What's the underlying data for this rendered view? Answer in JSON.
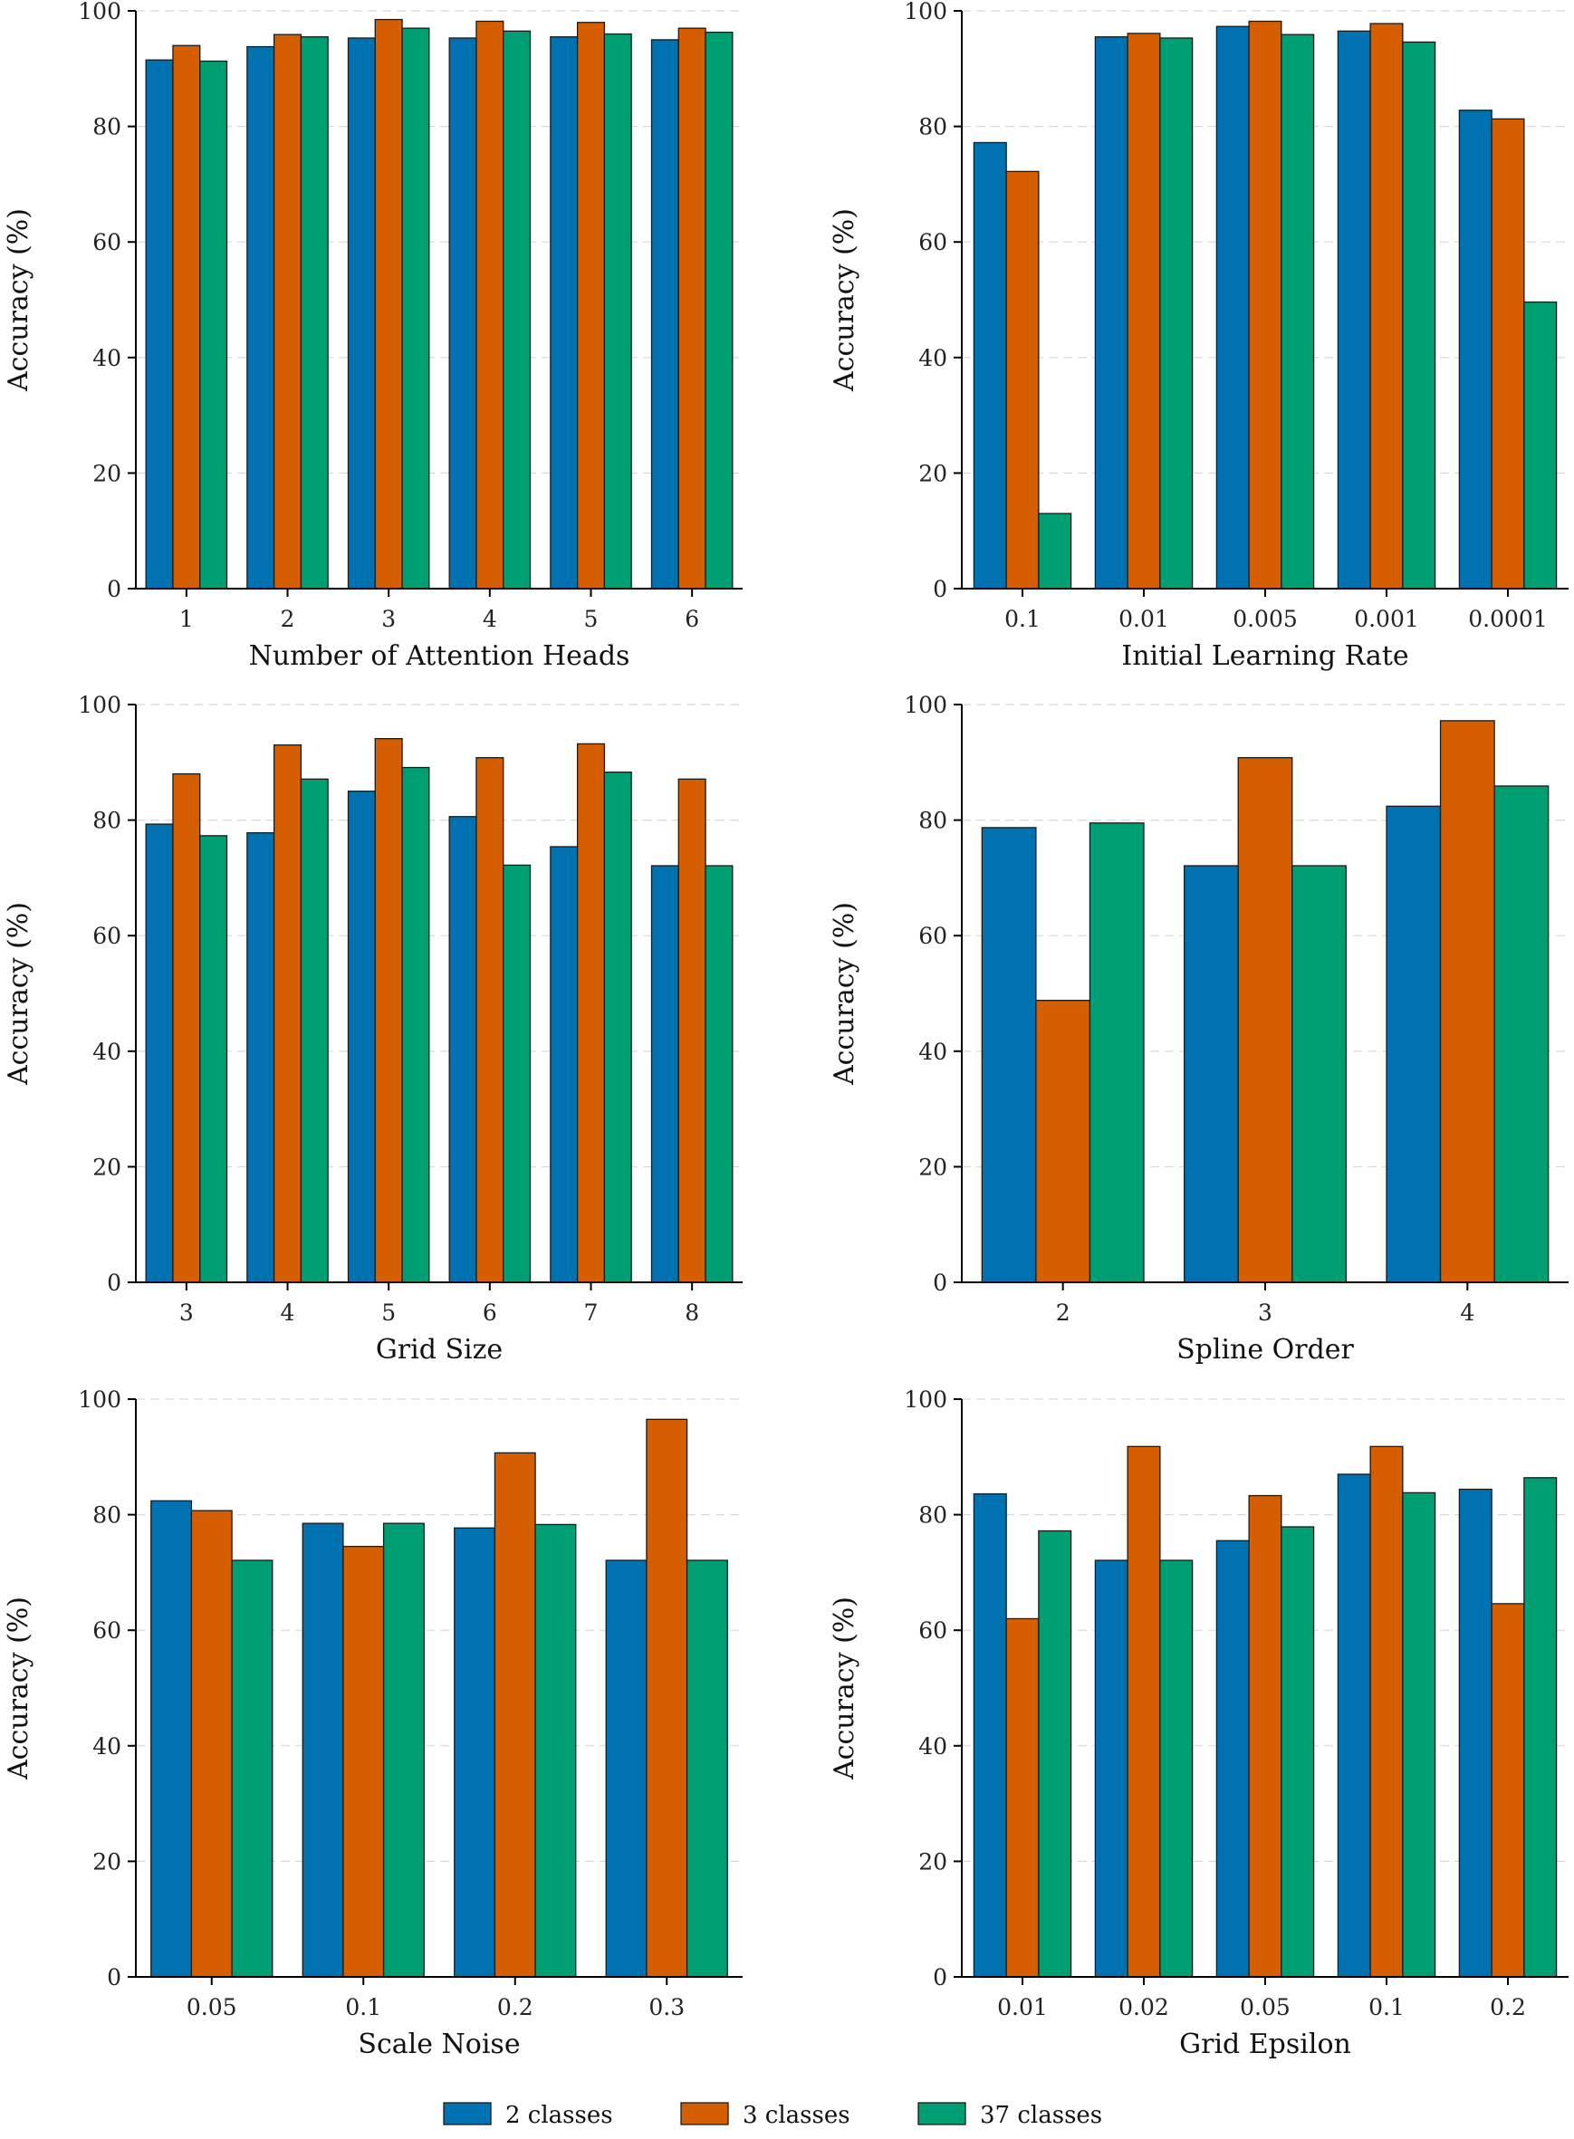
{
  "chart_data": [
    {
      "type": "bar",
      "xlabel": "Number of Attention Heads",
      "ylabel": "Accuracy (%)",
      "ylim": [
        0,
        100
      ],
      "yticks": [
        "0",
        "20",
        "40",
        "60",
        "80",
        "100"
      ],
      "grid": true,
      "categories": [
        "1",
        "2",
        "3",
        "4",
        "5",
        "6"
      ],
      "series": [
        {
          "name": "2 classes",
          "values": [
            91.5,
            93.8,
            95.3,
            95.3,
            95.5,
            95.0
          ]
        },
        {
          "name": "3 classes",
          "values": [
            94.0,
            95.9,
            98.5,
            98.2,
            98.0,
            97.0
          ]
        },
        {
          "name": "37 classes",
          "values": [
            91.3,
            95.5,
            97.0,
            96.5,
            96.0,
            96.3
          ]
        }
      ]
    },
    {
      "type": "bar",
      "xlabel": "Initial Learning Rate",
      "ylabel": "Accuracy (%)",
      "ylim": [
        0,
        100
      ],
      "yticks": [
        "0",
        "20",
        "40",
        "60",
        "80",
        "100"
      ],
      "grid": true,
      "categories": [
        "0.1",
        "0.01",
        "0.005",
        "0.001",
        "0.0001"
      ],
      "series": [
        {
          "name": "2 classes",
          "values": [
            77.2,
            95.5,
            97.3,
            96.5,
            82.8
          ]
        },
        {
          "name": "3 classes",
          "values": [
            72.2,
            96.1,
            98.2,
            97.8,
            81.3
          ]
        },
        {
          "name": "37 classes",
          "values": [
            13.0,
            95.3,
            95.9,
            94.6,
            49.6
          ]
        }
      ]
    },
    {
      "type": "bar",
      "xlabel": "Grid Size",
      "ylabel": "Accuracy (%)",
      "ylim": [
        0,
        100
      ],
      "yticks": [
        "0",
        "20",
        "40",
        "60",
        "80",
        "100"
      ],
      "grid": true,
      "categories": [
        "3",
        "4",
        "5",
        "6",
        "7",
        "8"
      ],
      "series": [
        {
          "name": "2 classes",
          "values": [
            79.3,
            77.8,
            85.0,
            80.6,
            75.4,
            72.1
          ]
        },
        {
          "name": "3 classes",
          "values": [
            88.0,
            93.0,
            94.1,
            90.8,
            93.2,
            87.1
          ]
        },
        {
          "name": "37 classes",
          "values": [
            77.3,
            87.1,
            89.1,
            72.2,
            88.3,
            72.1
          ]
        }
      ]
    },
    {
      "type": "bar",
      "xlabel": "Spline Order",
      "ylabel": "Accuracy (%)",
      "ylim": [
        0,
        100
      ],
      "yticks": [
        "0",
        "20",
        "40",
        "60",
        "80",
        "100"
      ],
      "grid": true,
      "categories": [
        "2",
        "3",
        "4"
      ],
      "series": [
        {
          "name": "2 classes",
          "values": [
            78.7,
            72.1,
            82.4
          ]
        },
        {
          "name": "3 classes",
          "values": [
            48.8,
            90.8,
            97.2
          ]
        },
        {
          "name": "37 classes",
          "values": [
            79.5,
            72.1,
            85.9
          ]
        }
      ]
    },
    {
      "type": "bar",
      "xlabel": "Scale Noise",
      "ylabel": "Accuracy (%)",
      "ylim": [
        0,
        100
      ],
      "yticks": [
        "0",
        "20",
        "40",
        "60",
        "80",
        "100"
      ],
      "grid": true,
      "categories": [
        "0.05",
        "0.1",
        "0.2",
        "0.3"
      ],
      "series": [
        {
          "name": "2 classes",
          "values": [
            82.4,
            78.5,
            77.7,
            72.1
          ]
        },
        {
          "name": "3 classes",
          "values": [
            80.7,
            74.5,
            90.7,
            96.5
          ]
        },
        {
          "name": "37 classes",
          "values": [
            72.1,
            78.5,
            78.3,
            72.1
          ]
        }
      ]
    },
    {
      "type": "bar",
      "xlabel": "Grid Epsilon",
      "ylabel": "Accuracy (%)",
      "ylim": [
        0,
        100
      ],
      "yticks": [
        "0",
        "20",
        "40",
        "60",
        "80",
        "100"
      ],
      "grid": true,
      "categories": [
        "0.01",
        "0.02",
        "0.05",
        "0.1",
        "0.2"
      ],
      "series": [
        {
          "name": "2 classes",
          "values": [
            83.6,
            72.1,
            75.5,
            87.0,
            84.4
          ]
        },
        {
          "name": "3 classes",
          "values": [
            62.0,
            91.8,
            83.3,
            91.8,
            64.6
          ]
        },
        {
          "name": "37 classes",
          "values": [
            77.2,
            72.1,
            77.9,
            83.8,
            86.4
          ]
        }
      ]
    }
  ],
  "legend": {
    "position": "bottom-center",
    "items": [
      {
        "label": "2 classes",
        "color": "#0072B2"
      },
      {
        "label": "3 classes",
        "color": "#D55E00"
      },
      {
        "label": "37 classes",
        "color": "#009E73"
      }
    ]
  },
  "colors": {
    "series": [
      "#0072B2",
      "#D55E00",
      "#009E73"
    ]
  }
}
